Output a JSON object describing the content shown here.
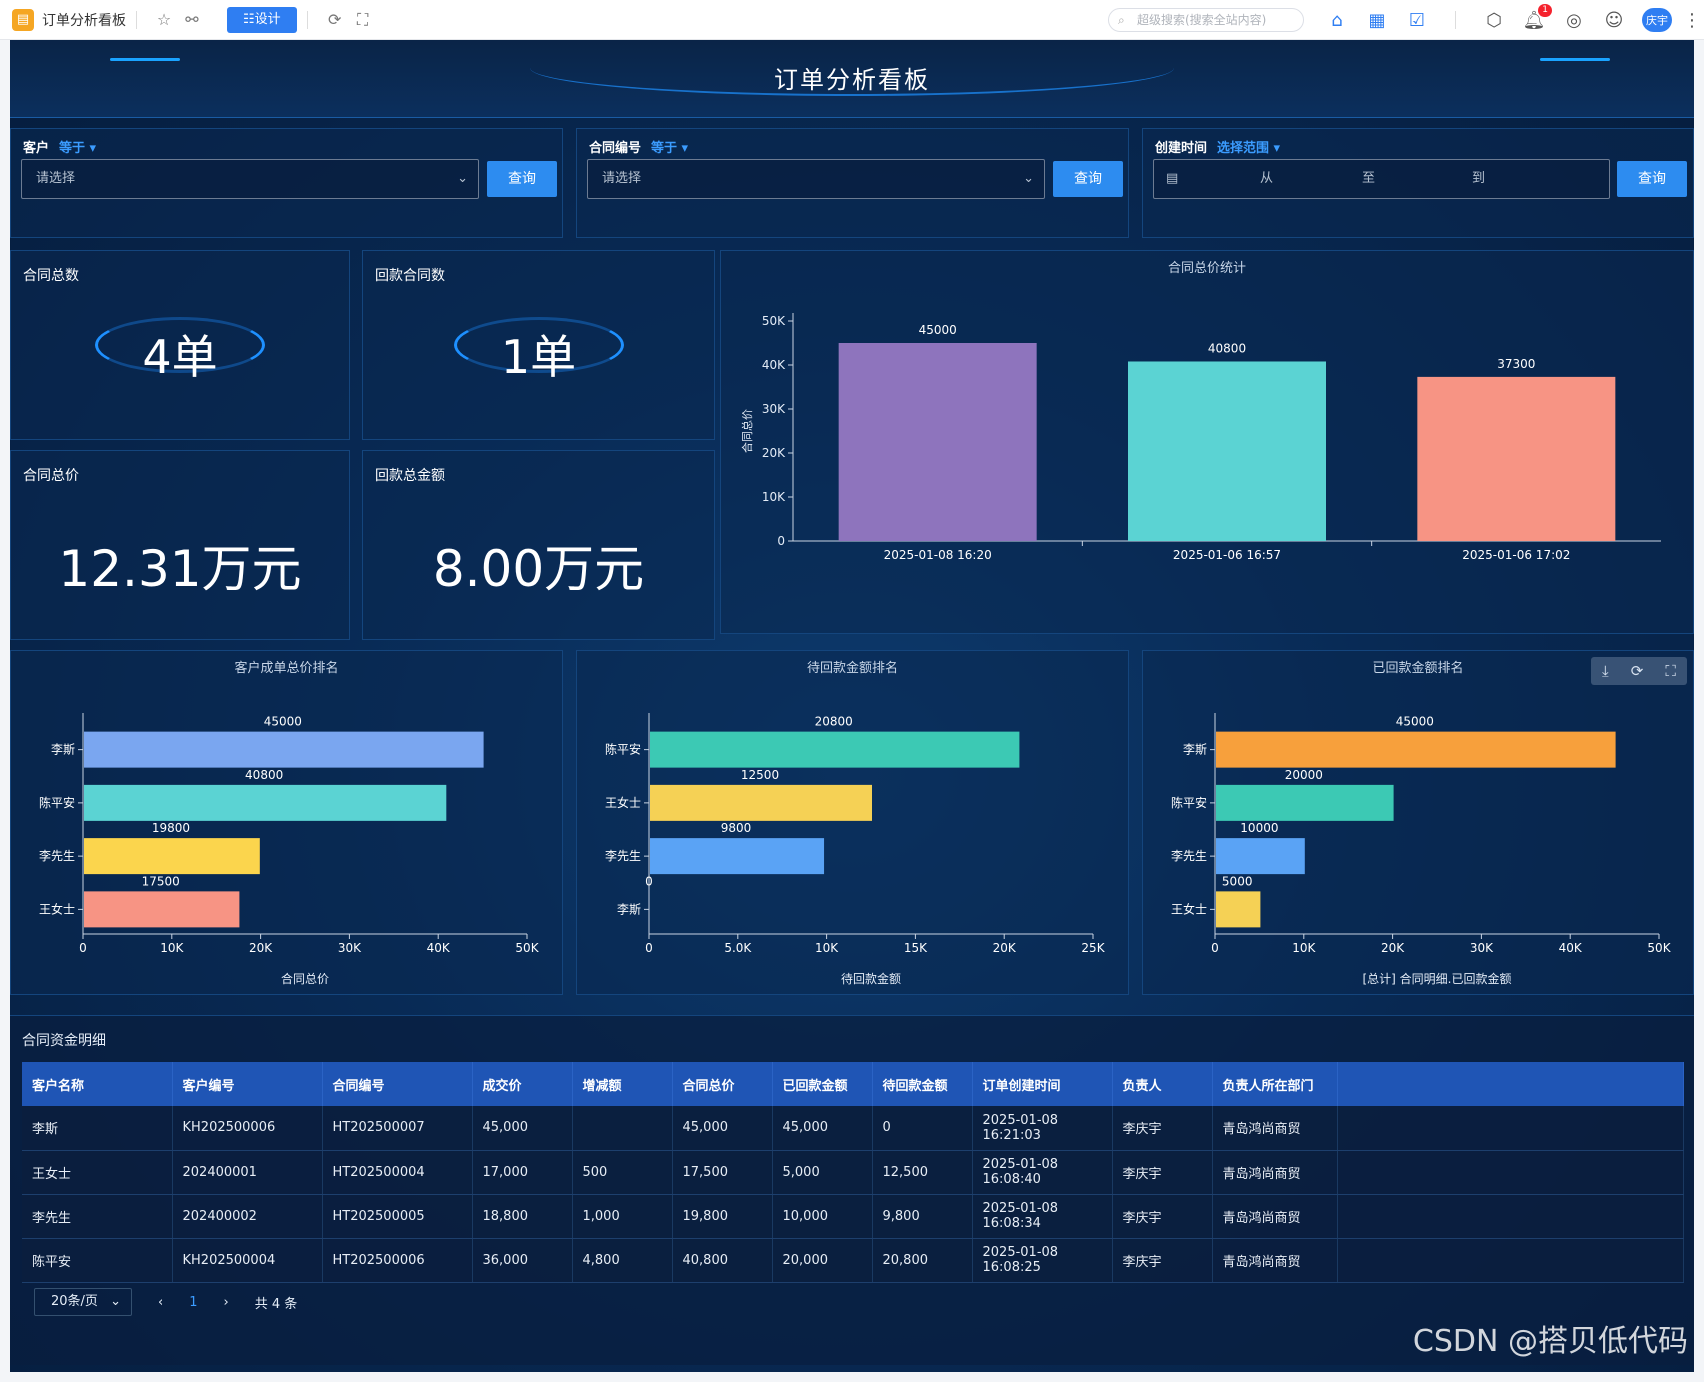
{
  "topbar": {
    "app_title": "订单分析看板",
    "design_label": "☷设计",
    "search_placeholder": "超级搜索(搜索全站内容)",
    "notification_count": "1",
    "user_name": "庆宇"
  },
  "dashboard": {
    "title": "订单分析看板"
  },
  "filters": [
    {
      "label": "客户",
      "operator": "等于 ▾",
      "placeholder": "请选择",
      "button": "查询"
    },
    {
      "label": "合同编号",
      "operator": "等于 ▾",
      "placeholder": "请选择",
      "button": "查询"
    },
    {
      "label": "创建时间",
      "operator": "选择范围 ▾",
      "range_from": "从",
      "range_to": "至",
      "range_end": "到",
      "button": "查询"
    }
  ],
  "kpis": [
    {
      "label": "合同总数",
      "value": "4单"
    },
    {
      "label": "回款合同数",
      "value": "1单"
    },
    {
      "label": "合同总价",
      "value": "12.31万元"
    },
    {
      "label": "回款总金额",
      "value": "8.00万元"
    }
  ],
  "chart_data": [
    {
      "type": "bar",
      "title": "合同总价统计",
      "categories": [
        "2025-01-08 16:20",
        "2025-01-06 16:57",
        "2025-01-06 17:02"
      ],
      "values": [
        45000,
        40800,
        37300
      ],
      "colors": [
        "#8e74bd",
        "#5bd3d3",
        "#f79484"
      ],
      "ylabel": "合同总价",
      "ylim": [
        0,
        50000
      ],
      "yticks": [
        "0",
        "10K",
        "20K",
        "30K",
        "40K",
        "50K"
      ]
    },
    {
      "type": "bar",
      "orientation": "horizontal",
      "title": "客户成单总价排名",
      "categories": [
        "李斯",
        "陈平安",
        "李先生",
        "王女士"
      ],
      "values": [
        45000,
        40800,
        19800,
        17500
      ],
      "colors": [
        "#7aa6f0",
        "#5bd3d3",
        "#fbd54d",
        "#f79484"
      ],
      "xlabel": "合同总价",
      "xlim": [
        0,
        50000
      ],
      "xticks": [
        "0",
        "10K",
        "20K",
        "30K",
        "40K",
        "50K"
      ]
    },
    {
      "type": "bar",
      "orientation": "horizontal",
      "title": "待回款金额排名",
      "categories": [
        "陈平安",
        "王女士",
        "李先生",
        "李斯"
      ],
      "values": [
        20800,
        12500,
        9800,
        0
      ],
      "colors": [
        "#3cc9b4",
        "#f5d155",
        "#5aa3f5",
        "#5aa3f5"
      ],
      "xlabel": "待回款金额",
      "xlim": [
        0,
        25000
      ],
      "xticks": [
        "0",
        "5.0K",
        "10K",
        "15K",
        "20K",
        "25K"
      ]
    },
    {
      "type": "bar",
      "orientation": "horizontal",
      "title": "已回款金额排名",
      "categories": [
        "李斯",
        "陈平安",
        "李先生",
        "王女士"
      ],
      "values": [
        45000,
        20000,
        10000,
        5000
      ],
      "colors": [
        "#f7a03c",
        "#3cc9b4",
        "#5aa3f5",
        "#f5d155"
      ],
      "xlabel": "[总计] 合同明细.已回款金额",
      "xlim": [
        0,
        50000
      ],
      "xticks": [
        "0",
        "10K",
        "20K",
        "30K",
        "40K",
        "50K"
      ]
    }
  ],
  "table": {
    "title": "合同资金明细",
    "columns": [
      "客户名称",
      "客户编号",
      "合同编号",
      "成交价",
      "增减额",
      "合同总价",
      "已回款金额",
      "待回款金额",
      "订单创建时间",
      "负责人",
      "负责人所在部门"
    ],
    "rows": [
      [
        "李斯",
        "KH202500006",
        "HT202500007",
        "45,000",
        "",
        "45,000",
        "45,000",
        "0",
        "2025-01-08 16:21:03",
        "李庆宇",
        "青岛鸿尚商贸"
      ],
      [
        "王女士",
        "202400001",
        "HT202500004",
        "17,000",
        "500",
        "17,500",
        "5,000",
        "12,500",
        "2025-01-08 16:08:40",
        "李庆宇",
        "青岛鸿尚商贸"
      ],
      [
        "李先生",
        "202400002",
        "HT202500005",
        "18,800",
        "1,000",
        "19,800",
        "10,000",
        "9,800",
        "2025-01-08 16:08:34",
        "李庆宇",
        "青岛鸿尚商贸"
      ],
      [
        "陈平安",
        "KH202500004",
        "HT202500006",
        "36,000",
        "4,800",
        "40,800",
        "20,000",
        "20,800",
        "2025-01-08 16:08:25",
        "李庆宇",
        "青岛鸿尚商贸"
      ]
    ],
    "pager": {
      "page_size": "20条/页",
      "prev": "‹",
      "current": "1",
      "next": "›",
      "total": "共 4 条"
    }
  },
  "watermark": "CSDN @搭贝低代码"
}
